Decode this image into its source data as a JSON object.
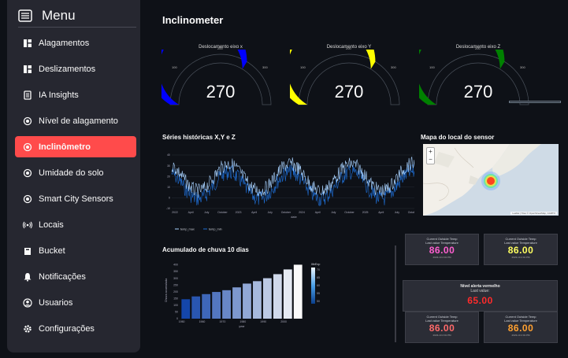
{
  "sidebar": {
    "title": "Menu",
    "items": [
      {
        "label": "Alagamentos",
        "icon": "dashboard-icon"
      },
      {
        "label": "Deslizamentos",
        "icon": "dashboard-icon"
      },
      {
        "label": "IA Insights",
        "icon": "document-icon"
      },
      {
        "label": "Nível de alagamento",
        "icon": "sensor-icon"
      },
      {
        "label": "Inclinômetro",
        "icon": "sensor-icon",
        "active": true
      },
      {
        "label": "Umidade do solo",
        "icon": "sensor-icon"
      },
      {
        "label": "Smart City Sensors",
        "icon": "sensor-icon"
      },
      {
        "label": "Locais",
        "icon": "broadcast-icon"
      },
      {
        "label": "Bucket",
        "icon": "bucket-icon"
      },
      {
        "label": "Notificações",
        "icon": "bell-icon"
      },
      {
        "label": "Usuarios",
        "icon": "user-icon"
      },
      {
        "label": "Configurações",
        "icon": "gear-icon"
      }
    ]
  },
  "page": {
    "title": "Inclinometer"
  },
  "gauges": [
    {
      "title": "Deslocamento eixo x",
      "value": 270,
      "range": [
        0,
        400
      ],
      "color": "#0000ff",
      "ticks": [
        "100",
        "200",
        "300"
      ]
    },
    {
      "title": "Deslocamento eixo Y",
      "value": 270,
      "range": [
        0,
        400
      ],
      "color": "#ffff00",
      "ticks": [
        "100",
        "200",
        "300"
      ]
    },
    {
      "title": "Deslocamento eixo Z",
      "value": 270,
      "range": [
        0,
        400
      ],
      "color": "#008000",
      "ticks": [
        "100",
        "200",
        "300"
      ]
    }
  ],
  "timeseries": {
    "title": "Séries históricas X,Y e Z",
    "xlabel": "date",
    "y_ticks": [
      "40",
      "30",
      "20",
      "10",
      "0",
      "-10"
    ],
    "x_ticks": [
      "2022",
      "April",
      "July",
      "October",
      "2023",
      "April",
      "July",
      "October",
      "2024",
      "April",
      "July",
      "October",
      "2025",
      "April",
      "July",
      "October"
    ],
    "legend": [
      "temp_max",
      "temp_min"
    ],
    "colors": [
      "#a8d2ff",
      "#1f6fd6"
    ]
  },
  "map": {
    "title": "Mapa do local do sensor",
    "zoom_in": "+",
    "zoom_out": "−",
    "attribution": "Leaflet | Tiles © OpenStreetMap, CARTO"
  },
  "chart_data": {
    "type": "bar",
    "title": "Acumulado de chuva 10 dias",
    "xlabel": "year",
    "ylabel": "Chuva acumulada",
    "x": [
      1952,
      1957,
      1962,
      1967,
      1972,
      1977,
      1982,
      1987,
      1992,
      1997,
      2002,
      2007
    ],
    "values": [
      144,
      165,
      182,
      198,
      211,
      232,
      260,
      278,
      300,
      330,
      365,
      400
    ],
    "ylim": [
      0,
      420
    ],
    "y_ticks": [
      "400",
      "350",
      "300",
      "250",
      "200",
      "150",
      "100",
      "50",
      "0"
    ],
    "x_ticks": [
      "1950",
      "1960",
      "1970",
      "1980",
      "1990",
      "2000"
    ],
    "colorbar_label": "lifeExp",
    "colorbar_ticks": [
      "70",
      "65",
      "60",
      "55",
      "50"
    ]
  },
  "tiles": {
    "label": "Current Outside Temp",
    "sub": "Last value Temperature",
    "foot": "2023-10 2:01 PM",
    "items": [
      {
        "value": "86.00",
        "color": "#ff5fd1"
      },
      {
        "value": "86.00",
        "color": "#ffff60"
      },
      {
        "value": "86.00",
        "color": "#ff6a6a"
      },
      {
        "value": "86.00",
        "color": "#ffa030"
      }
    ]
  },
  "alert": {
    "title": "Nível alerta vermelho",
    "sub": "Last value:",
    "value": "65.00"
  }
}
